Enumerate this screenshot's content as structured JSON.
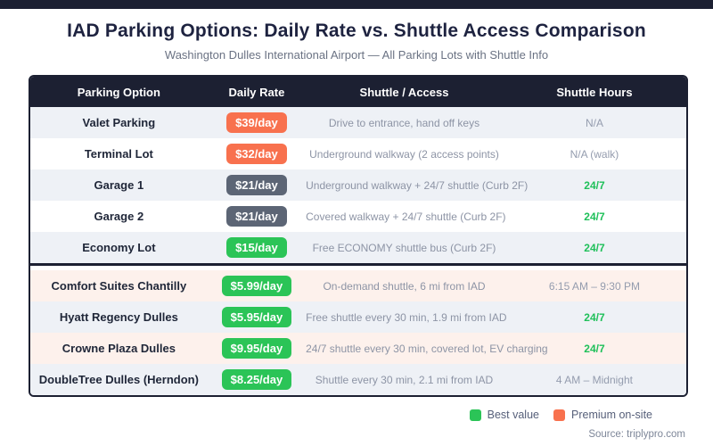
{
  "page": {
    "title": "IAD Parking Options: Daily Rate vs. Shuttle Access Comparison",
    "subtitle": "Washington Dulles International Airport — All Parking Lots with Shuttle Info",
    "source": "Source: triplypro.com"
  },
  "colors": {
    "header_bg": "#1c2032",
    "badge_orange": "#f8714e",
    "badge_slate": "#5c6575",
    "badge_green": "#2bc457",
    "hours_green": "#1fc05a",
    "row_light": "#eef1f6",
    "row_white": "#ffffff",
    "row_pink": "#fdf1ec"
  },
  "chart_data": {
    "type": "table",
    "title": "IAD Parking Options: Daily Rate vs. Shuttle Access Comparison",
    "subtitle": "Washington Dulles International Airport — All Parking Lots with Shuttle Info",
    "columns": [
      "Parking Option",
      "Daily Rate",
      "Shuttle / Access",
      "Shuttle Hours"
    ],
    "divider_after_index": 4,
    "rows": [
      {
        "name": "Valet Parking",
        "rate": "$39/day",
        "rate_value": 39,
        "badge": "orange",
        "access": "Drive to entrance, hand off keys",
        "hours": "N/A",
        "hours_type": "muted",
        "bg": "light"
      },
      {
        "name": "Terminal Lot",
        "rate": "$32/day",
        "rate_value": 32,
        "badge": "orange",
        "access": "Underground walkway (2 access points)",
        "hours": "N/A (walk)",
        "hours_type": "muted",
        "bg": "white"
      },
      {
        "name": "Garage 1",
        "rate": "$21/day",
        "rate_value": 21,
        "badge": "slate",
        "access": "Underground walkway + 24/7 shuttle (Curb 2F)",
        "hours": "24/7",
        "hours_type": "green",
        "bg": "light"
      },
      {
        "name": "Garage 2",
        "rate": "$21/day",
        "rate_value": 21,
        "badge": "slate",
        "access": "Covered walkway + 24/7 shuttle (Curb 2F)",
        "hours": "24/7",
        "hours_type": "green",
        "bg": "white"
      },
      {
        "name": "Economy Lot",
        "rate": "$15/day",
        "rate_value": 15,
        "badge": "green",
        "access": "Free ECONOMY shuttle bus (Curb 2F)",
        "hours": "24/7",
        "hours_type": "green",
        "bg": "light"
      },
      {
        "name": "Comfort Suites Chantilly",
        "rate": "$5.99/day",
        "rate_value": 5.99,
        "badge": "green",
        "access": "On-demand shuttle, 6 mi from IAD",
        "hours": "6:15 AM – 9:30 PM",
        "hours_type": "muted",
        "bg": "pink"
      },
      {
        "name": "Hyatt Regency Dulles",
        "rate": "$5.95/day",
        "rate_value": 5.95,
        "badge": "green",
        "access": "Free shuttle every 30 min, 1.9 mi from IAD",
        "hours": "24/7",
        "hours_type": "green",
        "bg": "light"
      },
      {
        "name": "Crowne Plaza Dulles",
        "rate": "$9.95/day",
        "rate_value": 9.95,
        "badge": "green",
        "access": "24/7 shuttle every 30 min, covered lot, EV charging",
        "hours": "24/7",
        "hours_type": "green",
        "bg": "pink"
      },
      {
        "name": "DoubleTree Dulles (Herndon)",
        "rate": "$8.25/day",
        "rate_value": 8.25,
        "badge": "green",
        "access": "Shuttle every 30 min, 2.1 mi from IAD",
        "hours": "4 AM – Midnight",
        "hours_type": "muted",
        "bg": "light"
      }
    ]
  },
  "legend": [
    {
      "label": "Best value",
      "color": "#2bc457"
    },
    {
      "label": "Premium on-site",
      "color": "#f8714e"
    }
  ]
}
